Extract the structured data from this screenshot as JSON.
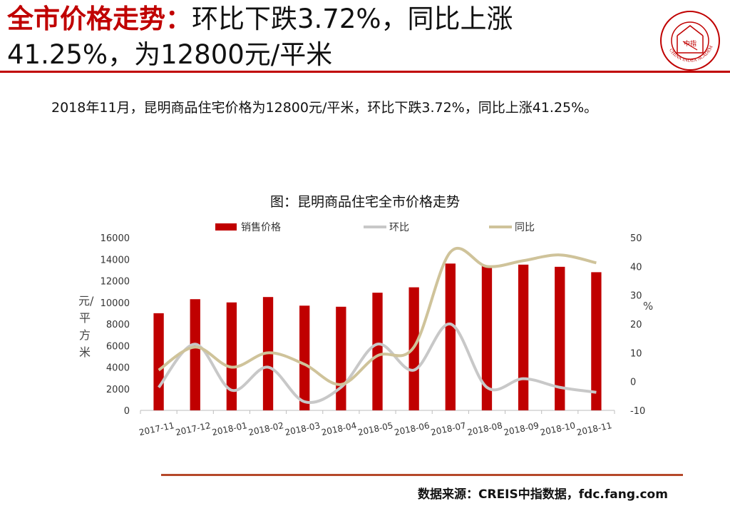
{
  "header": {
    "title_accent": "全市价格走势：",
    "title_rest": "环比下跌3.72%，同比上涨41.25%，为12800元/平米"
  },
  "summary": "2018年11月，昆明商品住宅价格为12800元/平米，环比下跌3.72%，同比上涨41.25%。",
  "logo": {
    "center_text": "中指",
    "ring_text": "CHINA INDEX ACADEMY"
  },
  "colors": {
    "bar": "#c00000",
    "mom": "#c8c8c8",
    "yoy": "#cfc39a",
    "accent": "#c00000"
  },
  "chart_data": {
    "type": "bar",
    "title": "图：昆明商品住宅全市价格走势",
    "categories": [
      "2017-11",
      "2017-12",
      "2018-01",
      "2018-02",
      "2018-03",
      "2018-04",
      "2018-05",
      "2018-06",
      "2018-07",
      "2018-08",
      "2018-09",
      "2018-10",
      "2018-11"
    ],
    "ylabel_left": "元/平方米",
    "ylabel_right": "%",
    "ylim_left": [
      0,
      16000
    ],
    "yticks_left": [
      "0",
      "2000",
      "4000",
      "6000",
      "8000",
      "10000",
      "12000",
      "14000",
      "16000"
    ],
    "ylim_right": [
      -10,
      50
    ],
    "yticks_right": [
      "-10",
      "0",
      "10",
      "20",
      "30",
      "40",
      "50"
    ],
    "legend_position": "top",
    "series": [
      {
        "name": "销售价格",
        "type": "bar",
        "axis": "left",
        "values": [
          9000,
          10300,
          10000,
          10500,
          9700,
          9600,
          10900,
          11400,
          13600,
          13400,
          13500,
          13300,
          12800
        ]
      },
      {
        "name": "环比",
        "type": "line",
        "axis": "right",
        "values": [
          -2,
          13,
          -3,
          5,
          -7,
          -2,
          13,
          4,
          20,
          -2,
          1,
          -2,
          -3.72
        ]
      },
      {
        "name": "同比",
        "type": "line",
        "axis": "right",
        "values": [
          4,
          12,
          5,
          10,
          6,
          -1,
          9,
          12,
          45,
          40,
          42,
          44,
          41.25
        ]
      }
    ]
  },
  "footer": {
    "source": "数据来源：CREIS中指数据，fdc.fang.com"
  }
}
